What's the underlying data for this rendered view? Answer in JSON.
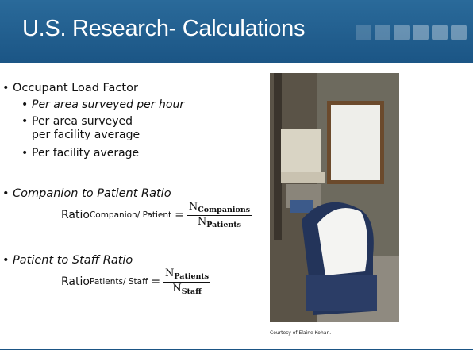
{
  "header": {
    "title": "U.S. Research- Calculations"
  },
  "bullets": [
    {
      "text": "Occupant Load Factor",
      "sub": [
        "Per area surveyed per hour",
        "Per area surveyed per facility average",
        "Per facility average"
      ]
    },
    {
      "text": "Companion to Patient Ratio",
      "formula": {
        "base": "Ratio",
        "subscript": "Companion/ Patient",
        "equals": "=",
        "numerator": {
          "symbol": "N",
          "subscript": "Companions"
        },
        "denominator": {
          "symbol": "N",
          "subscript": "Patients"
        }
      }
    },
    {
      "text": "Patient to Staff Ratio",
      "formula": {
        "base": "Ratio",
        "subscript": "Patients/ Staff",
        "equals": "=",
        "numerator": {
          "symbol": "N",
          "subscript": "Patients"
        },
        "denominator": {
          "symbol": "N",
          "subscript": "Staff"
        }
      }
    }
  ],
  "image": {
    "caption": "Courtesy of Elaine Kohan."
  }
}
